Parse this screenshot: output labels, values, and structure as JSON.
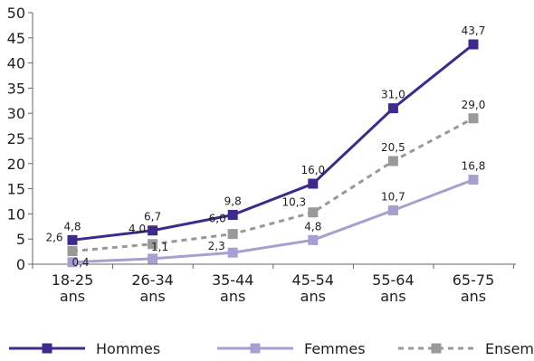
{
  "chart_data": {
    "type": "line",
    "categories": [
      [
        "18-25",
        "ans"
      ],
      [
        "26-34",
        "ans"
      ],
      [
        "35-44",
        "ans"
      ],
      [
        "45-54",
        "ans"
      ],
      [
        "55-64",
        "ans"
      ],
      [
        "65-75",
        "ans"
      ]
    ],
    "series": [
      {
        "name": "Hommes",
        "values": [
          4.8,
          6.7,
          9.8,
          16.0,
          31.0,
          43.7
        ],
        "labels": [
          "4,8",
          "6,7",
          "9,8",
          "16,0",
          "31,0",
          "43,7"
        ],
        "color": "#3f2a8c",
        "style": "solid"
      },
      {
        "name": "Femmes",
        "values": [
          0.4,
          1.1,
          2.3,
          4.8,
          10.7,
          16.8
        ],
        "labels": [
          "0,4",
          "1,1",
          "2,3",
          "4,8",
          "10,7",
          "16,8"
        ],
        "color": "#a89fd0",
        "style": "solid"
      },
      {
        "name": "Ensemble",
        "values": [
          2.6,
          4.0,
          6.0,
          10.3,
          20.5,
          29.0
        ],
        "labels": [
          "2,6",
          "4,0",
          "6,0",
          "10,3",
          "20,5",
          "29,0"
        ],
        "color": "#999999",
        "style": "dashed"
      }
    ],
    "yticks": [
      "0",
      "5",
      "10",
      "15",
      "20",
      "25",
      "30",
      "35",
      "40",
      "45",
      "50"
    ],
    "ylim": [
      0,
      50
    ],
    "grid": false,
    "legend_position": "bottom"
  }
}
